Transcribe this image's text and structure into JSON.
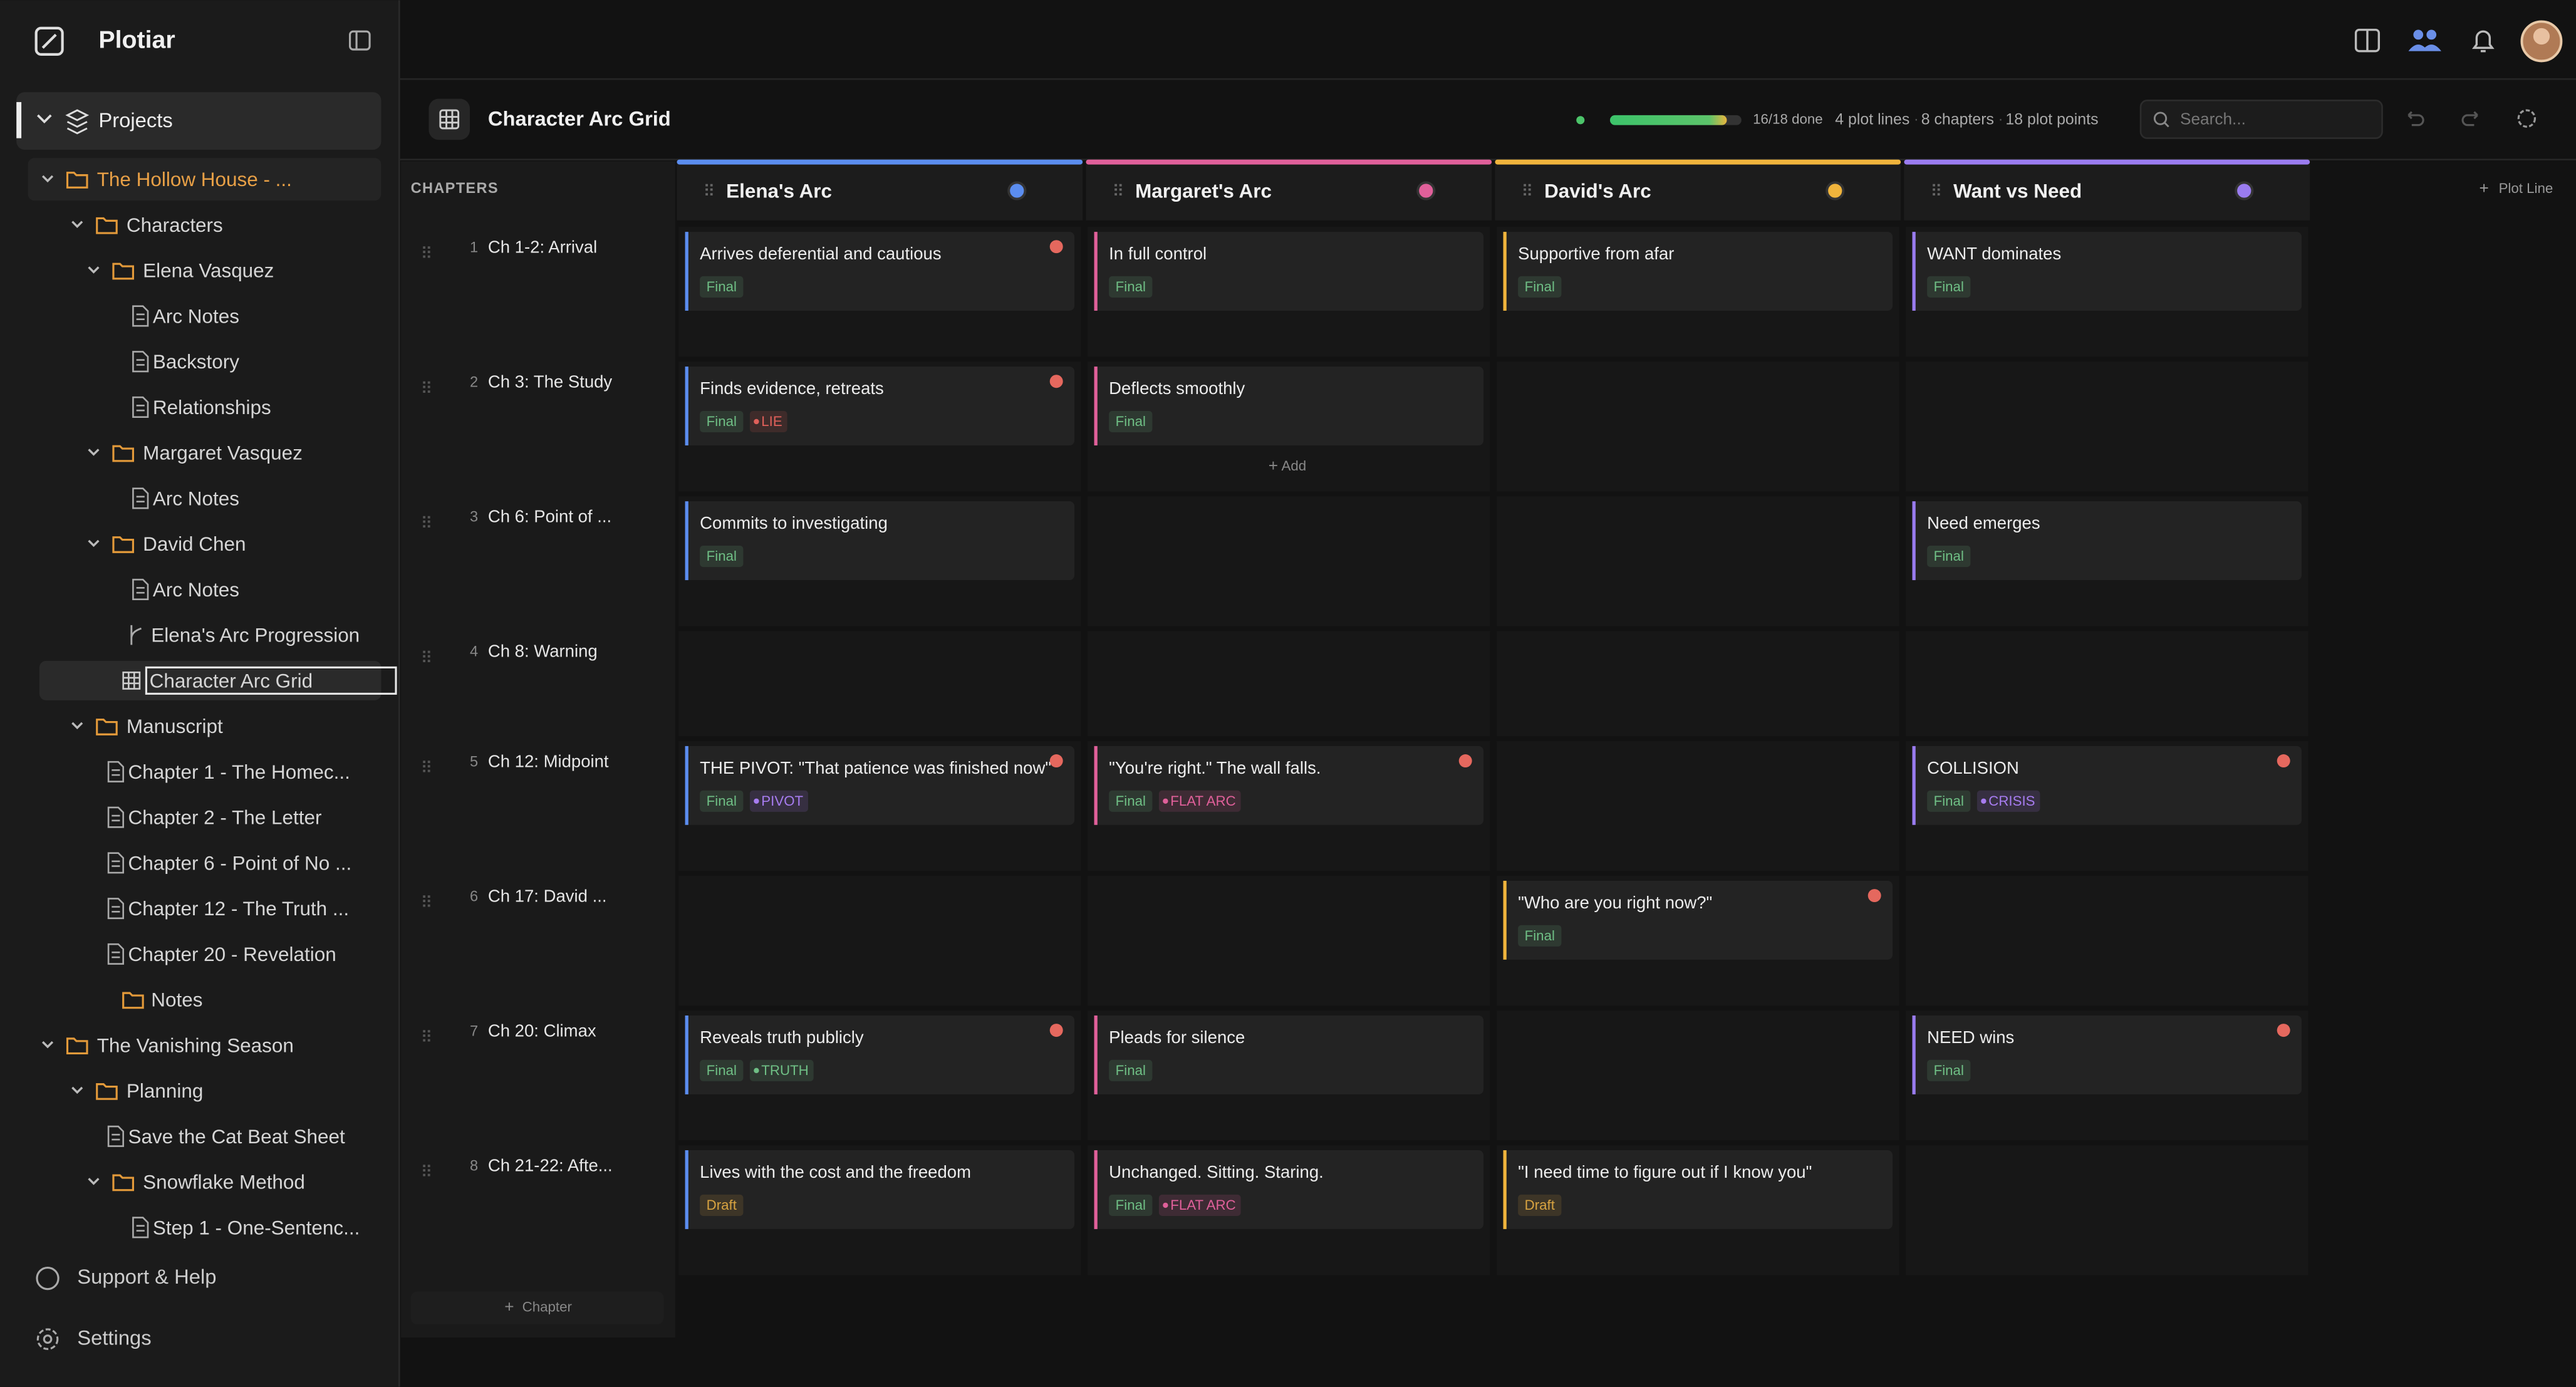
{
  "app": {
    "name": "Plotiar"
  },
  "sidebar": {
    "root": "Projects",
    "tree": [
      {
        "label": "The Hollow House - ...",
        "kind": "project",
        "open": true,
        "current": true,
        "children": [
          {
            "label": "Characters",
            "kind": "folder",
            "open": true,
            "children": [
              {
                "label": "Elena Vasquez",
                "kind": "folder",
                "open": true,
                "children": [
                  {
                    "label": "Arc Notes",
                    "kind": "file"
                  },
                  {
                    "label": "Backstory",
                    "kind": "file"
                  },
                  {
                    "label": "Relationships",
                    "kind": "file"
                  }
                ]
              },
              {
                "label": "Margaret Vasquez",
                "kind": "folder",
                "open": true,
                "children": [
                  {
                    "label": "Arc Notes",
                    "kind": "file"
                  }
                ]
              },
              {
                "label": "David Chen",
                "kind": "folder",
                "open": true,
                "children": [
                  {
                    "label": "Arc Notes",
                    "kind": "file"
                  }
                ]
              }
            ]
          },
          {
            "label": "Elena's Arc Progression",
            "kind": "arc"
          },
          {
            "label": "Character Arc Grid",
            "kind": "grid",
            "selected": true
          },
          {
            "label": "Manuscript",
            "kind": "folder",
            "open": true,
            "children": [
              {
                "label": "Chapter 1 - The Homec...",
                "kind": "file"
              },
              {
                "label": "Chapter 2 - The Letter",
                "kind": "file"
              },
              {
                "label": "Chapter 6 - Point of No ...",
                "kind": "file"
              },
              {
                "label": "Chapter 12 - The Truth ...",
                "kind": "file"
              },
              {
                "label": "Chapter 20 - Revelation",
                "kind": "file"
              }
            ]
          },
          {
            "label": "Notes",
            "kind": "folder"
          }
        ]
      },
      {
        "label": "The Vanishing Season",
        "kind": "project",
        "open": true,
        "children": [
          {
            "label": "Planning",
            "kind": "folder",
            "open": true,
            "children": [
              {
                "label": "Save the Cat Beat Sheet",
                "kind": "file"
              },
              {
                "label": "Snowflake Method",
                "kind": "folder",
                "open": true,
                "children": [
                  {
                    "label": "Step 1 - One-Sentenc...",
                    "kind": "file"
                  }
                ]
              }
            ]
          }
        ]
      }
    ],
    "footer": [
      "Support & Help",
      "Settings"
    ]
  },
  "header": {
    "title": "Character Arc Grid",
    "progress": {
      "value": 16,
      "max": 18,
      "label": "16/18 done"
    },
    "stats": [
      "4 plot lines",
      "8 chapters",
      "18 plot points"
    ],
    "search": "Search...",
    "add_line": "Plot Line"
  },
  "grid": {
    "chapters_label": "CHAPTERS",
    "add_chapter": "Chapter",
    "columns": [
      {
        "name": "Elena's Arc",
        "color": "#5b8def"
      },
      {
        "name": "Margaret's Arc",
        "color": "#e0609a"
      },
      {
        "name": "David's Arc",
        "color": "#f0b43c"
      },
      {
        "name": "Want vs Need",
        "color": "#9a7cf0"
      }
    ],
    "rows": [
      {
        "num": "1",
        "name": "Ch 1-2: Arrival",
        "cells": [
          {
            "text": "Arrives deferential and cautious",
            "status": "Final",
            "status_color": "#6fbf85",
            "flag": true
          },
          {
            "text": "In full control",
            "status": "Final",
            "status_color": "#6fbf85"
          },
          {
            "text": "Supportive from afar",
            "status": "Final",
            "status_color": "#6fbf85"
          },
          {
            "text": "WANT dominates",
            "status": "Final",
            "status_color": "#6fbf85"
          }
        ]
      },
      {
        "num": "2",
        "name": "Ch 3: The Study",
        "cells": [
          {
            "text": "Finds evidence, retreats",
            "status": "Final",
            "status_color": "#6fbf85",
            "flag": true,
            "tag": "LIE",
            "tag_color": "#e0605a"
          },
          {
            "text": "Deflects smoothly",
            "status": "Final",
            "status_color": "#6fbf85",
            "add_label": "Add"
          },
          null,
          null
        ]
      },
      {
        "num": "3",
        "name": "Ch 6: Point of ...",
        "cells": [
          {
            "text": "Commits to investigating",
            "status": "Final",
            "status_color": "#6fbf85"
          },
          null,
          null,
          {
            "text": "Need emerges",
            "status": "Final",
            "status_color": "#6fbf85"
          }
        ]
      },
      {
        "num": "4",
        "name": "Ch 8: Warning",
        "cells": [
          null,
          null,
          null,
          null
        ]
      },
      {
        "num": "5",
        "name": "Ch 12: Midpoint",
        "cells": [
          {
            "text": "THE PIVOT: \"That patience was finished now\"",
            "status": "Final",
            "status_color": "#6fbf85",
            "flag": true,
            "tag": "PIVOT",
            "tag_color": "#a77cf0"
          },
          {
            "text": "\"You're right.\" The wall falls.",
            "status": "Final",
            "status_color": "#6fbf85",
            "flag": true,
            "tag": "FLAT ARC",
            "tag_color": "#e0609a"
          },
          null,
          {
            "text": "COLLISION",
            "status": "Final",
            "status_color": "#6fbf85",
            "flag": true,
            "tag": "CRISIS",
            "tag_color": "#a77cf0"
          }
        ]
      },
      {
        "num": "6",
        "name": "Ch 17: David ...",
        "cells": [
          null,
          null,
          {
            "text": "\"Who are you right now?\"",
            "status": "Final",
            "status_color": "#6fbf85",
            "flag": true
          },
          null
        ]
      },
      {
        "num": "7",
        "name": "Ch 20: Climax",
        "cells": [
          {
            "text": "Reveals truth publicly",
            "status": "Final",
            "status_color": "#6fbf85",
            "flag": true,
            "tag": "TRUTH",
            "tag_color": "#6fbf85"
          },
          {
            "text": "Pleads for silence",
            "status": "Final",
            "status_color": "#6fbf85"
          },
          null,
          {
            "text": "NEED wins",
            "status": "Final",
            "status_color": "#6fbf85",
            "flag": true
          }
        ]
      },
      {
        "num": "8",
        "name": "Ch 21-22: Afte...",
        "cells": [
          {
            "text": "Lives with the cost and the freedom",
            "status": "Draft",
            "status_color": "#d9a441"
          },
          {
            "text": "Unchanged. Sitting. Staring.",
            "status": "Final",
            "status_color": "#6fbf85",
            "tag": "FLAT ARC",
            "tag_color": "#e0609a"
          },
          {
            "text": "\"I need time to figure out if I know you\"",
            "status": "Draft",
            "status_color": "#d9a441"
          },
          null
        ]
      }
    ]
  }
}
